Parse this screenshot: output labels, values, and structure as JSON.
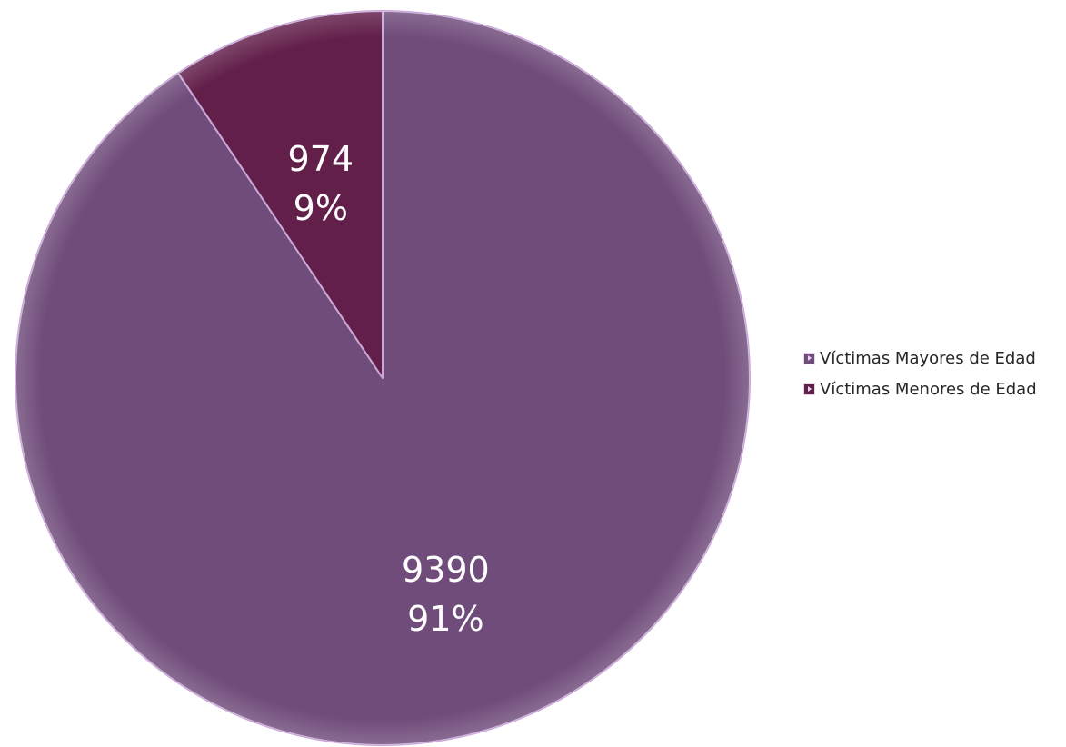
{
  "chart_data": {
    "type": "pie",
    "title": "",
    "start_angle_deg": 0,
    "direction": "clockwise",
    "slices": [
      {
        "name": "Víctimas Mayores de Edad",
        "value": 9390,
        "percent_label": "91%",
        "color": "#6f4c7a"
      },
      {
        "name": "Víctimas Menores de Edad",
        "value": 974,
        "percent_label": "9%",
        "color": "#621f4a"
      }
    ],
    "legend": {
      "position": "right",
      "entries": [
        "Víctimas Mayores de Edad",
        "Víctimas Menores de Edad"
      ]
    }
  },
  "colors": {
    "slice_edge": "#c9a8d8",
    "label": "#ffffff",
    "legend_text": "#262626"
  }
}
